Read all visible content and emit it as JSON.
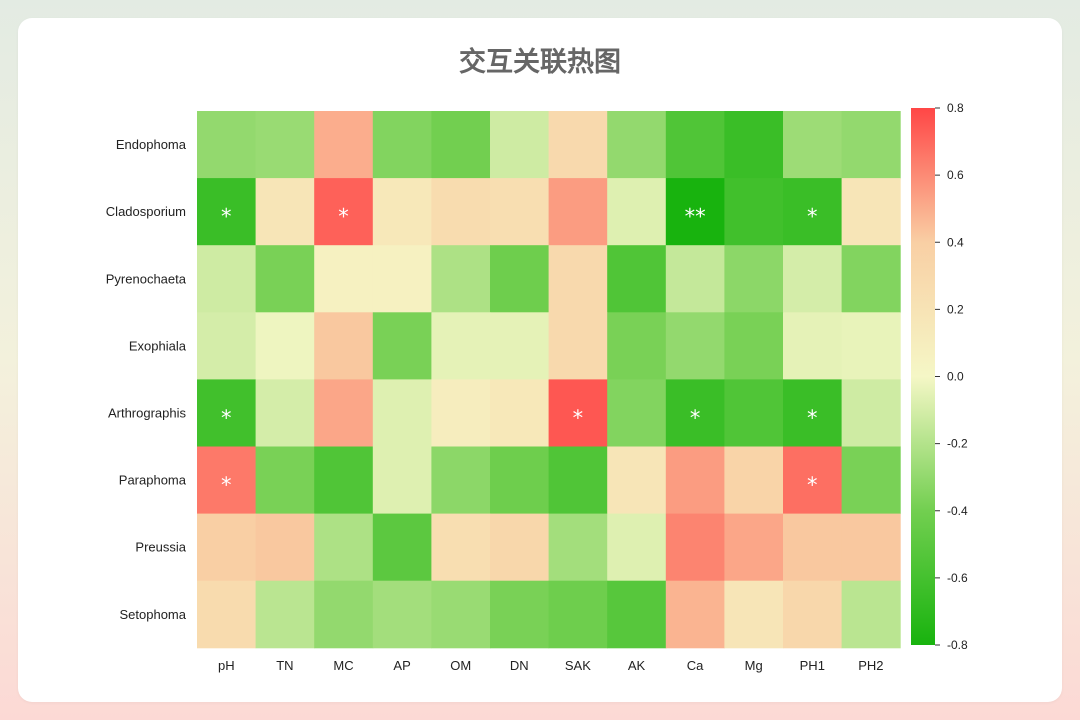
{
  "chart_data": {
    "type": "heatmap",
    "title": "交互关联热图",
    "columns": [
      "pH",
      "TN",
      "MC",
      "AP",
      "OM",
      "DN",
      "SAK",
      "AK",
      "Ca",
      "Mg",
      "PH1",
      "PH2"
    ],
    "rows": [
      "Endophoma",
      "Cladosporium",
      "Pyrenochaeta",
      "Exophiala",
      "Arthrographis",
      "Paraphoma",
      "Preussia",
      "Setophoma"
    ],
    "values": [
      [
        -0.3,
        -0.28,
        0.5,
        -0.35,
        -0.4,
        -0.12,
        0.3,
        -0.3,
        -0.55,
        -0.65,
        -0.27,
        -0.3
      ],
      [
        -0.65,
        0.18,
        0.72,
        0.15,
        0.27,
        0.25,
        0.55,
        -0.07,
        -0.8,
        -0.62,
        -0.65,
        0.18
      ],
      [
        -0.12,
        -0.38,
        0.06,
        0.06,
        -0.22,
        -0.42,
        0.3,
        -0.55,
        -0.15,
        -0.32,
        -0.1,
        -0.35
      ],
      [
        -0.1,
        -0.02,
        0.42,
        -0.38,
        -0.05,
        -0.05,
        0.3,
        -0.38,
        -0.3,
        -0.38,
        -0.05,
        -0.04
      ],
      [
        -0.62,
        -0.1,
        0.52,
        -0.07,
        0.1,
        0.15,
        0.75,
        -0.35,
        -0.65,
        -0.55,
        -0.65,
        -0.12
      ],
      [
        0.65,
        -0.38,
        -0.55,
        -0.07,
        -0.32,
        -0.42,
        -0.55,
        0.18,
        0.55,
        0.35,
        0.68,
        -0.38
      ],
      [
        0.4,
        0.42,
        -0.22,
        -0.5,
        0.25,
        0.32,
        -0.25,
        -0.07,
        0.62,
        0.52,
        0.42,
        0.42
      ],
      [
        0.28,
        -0.18,
        -0.3,
        -0.25,
        -0.28,
        -0.38,
        -0.42,
        -0.52,
        0.48,
        0.18,
        0.32,
        -0.18
      ]
    ],
    "annotations": [
      [
        "",
        "",
        "",
        "",
        "",
        "",
        "",
        "",
        "",
        "",
        "",
        ""
      ],
      [
        "*",
        "",
        "*",
        "",
        "",
        "",
        "",
        "",
        "**",
        "",
        "*",
        ""
      ],
      [
        "",
        "",
        "",
        "",
        "",
        "",
        "",
        "",
        "",
        "",
        "",
        ""
      ],
      [
        "",
        "",
        "",
        "",
        "",
        "",
        "",
        "",
        "",
        "",
        "",
        ""
      ],
      [
        "*",
        "",
        "",
        "",
        "",
        "",
        "*",
        "",
        "*",
        "",
        "*",
        ""
      ],
      [
        "*",
        "",
        "",
        "",
        "",
        "",
        "",
        "",
        "",
        "",
        "*",
        ""
      ],
      [
        "",
        "",
        "",
        "",
        "",
        "",
        "",
        "",
        "",
        "",
        "",
        ""
      ],
      [
        "",
        "",
        "",
        "",
        "",
        "",
        "",
        "",
        "",
        "",
        "",
        ""
      ]
    ],
    "value_range": [
      -0.8,
      0.8
    ],
    "colorbar_ticks": [
      "0.8",
      "0.6",
      "0.4",
      "0.2",
      "0.0",
      "-0.2",
      "-0.4",
      "-0.6",
      "-0.8"
    ],
    "colorbar_placement": "right",
    "colors": {
      "negative_end": "#18b30e",
      "negative_mid": "#72cf50",
      "neutral": "#f5f7c6",
      "positive_mid": "#f9cfa4",
      "positive_end": "#ff4646"
    },
    "grid": false
  }
}
